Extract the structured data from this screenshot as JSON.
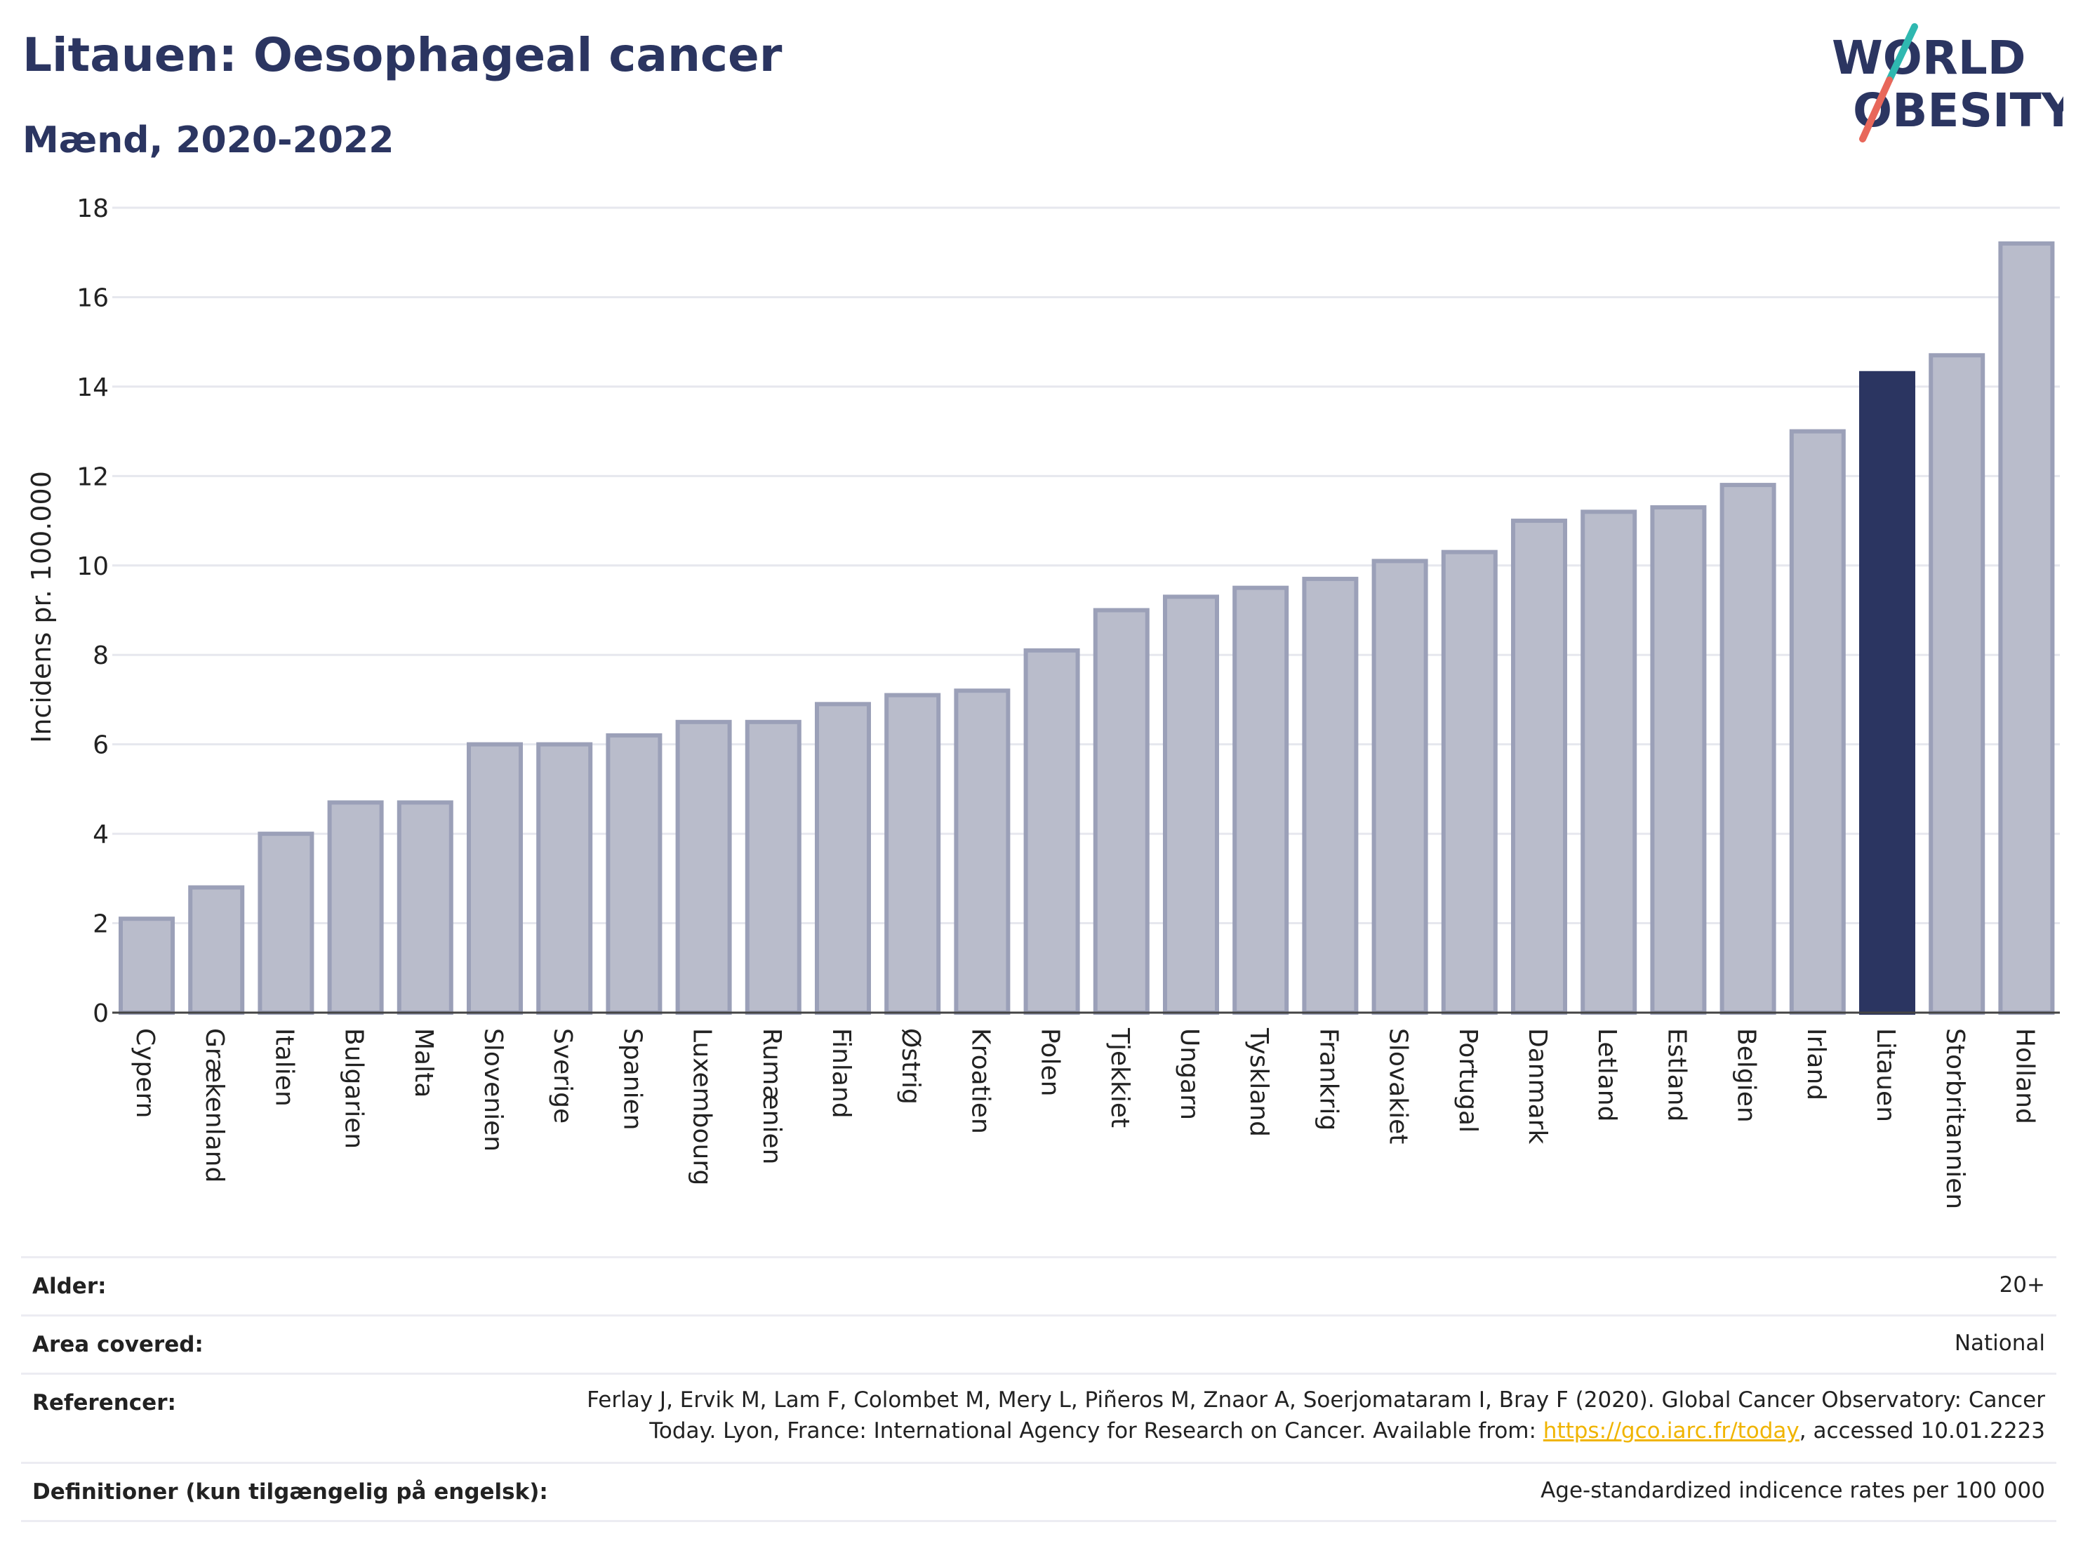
{
  "header": {
    "title": "Litauen: Oesophageal cancer",
    "subtitle": "Mænd, 2020-2022"
  },
  "logo": {
    "line1": "WORLD",
    "line2": "OBESITY"
  },
  "colors": {
    "bar": "#b9bccb",
    "bar_stroke": "#9ba0b8",
    "highlight": "#2b3561",
    "title": "#2b3561",
    "link": "#f0b400"
  },
  "chart_data": {
    "type": "bar",
    "title": "Litauen: Oesophageal cancer",
    "subtitle": "Mænd, 2020-2022",
    "xlabel": "",
    "ylabel": "Incidens pr. 100.000",
    "ylim": [
      0,
      18
    ],
    "yticks": [
      0,
      2,
      4,
      6,
      8,
      10,
      12,
      14,
      16,
      18
    ],
    "grid": true,
    "highlight": "Litauen",
    "categories": [
      "Cypern",
      "Grækenland",
      "Italien",
      "Bulgarien",
      "Malta",
      "Slovenien",
      "Sverige",
      "Spanien",
      "Luxembourg",
      "Rumænien",
      "Finland",
      "Østrig",
      "Kroatien",
      "Polen",
      "Tjekkiet",
      "Ungarn",
      "Tyskland",
      "Frankrig",
      "Slovakiet",
      "Portugal",
      "Danmark",
      "Letland",
      "Estland",
      "Belgien",
      "Irland",
      "Litauen",
      "Storbritannien",
      "Holland"
    ],
    "values": [
      2.1,
      2.8,
      4.0,
      4.7,
      4.7,
      6.0,
      6.0,
      6.2,
      6.5,
      6.5,
      6.9,
      7.1,
      7.2,
      8.1,
      9.0,
      9.3,
      9.5,
      9.7,
      10.1,
      10.3,
      11.0,
      11.2,
      11.3,
      11.8,
      13.0,
      14.3,
      14.7,
      17.2
    ]
  },
  "meta": {
    "rows": [
      {
        "label": "Alder:",
        "value": "20+"
      },
      {
        "label": "Area covered:",
        "value": "National"
      },
      {
        "label": "Referencer:",
        "value_line1": "Ferlay J, Ervik M, Lam F, Colombet M, Mery L, Piñeros M, Znaor A, Soerjomataram I, Bray F (2020). Global Cancer Observatory: Cancer",
        "value_line2_pre": "Today. Lyon, France: International Agency for Research on Cancer. Available from: ",
        "link": "https://gco.iarc.fr/today",
        "value_line2_post": ", accessed 10.01.2223"
      },
      {
        "label": "Definitioner (kun tilgængelig på engelsk):",
        "value": "Age-standardized indicence rates per 100 000"
      }
    ]
  }
}
